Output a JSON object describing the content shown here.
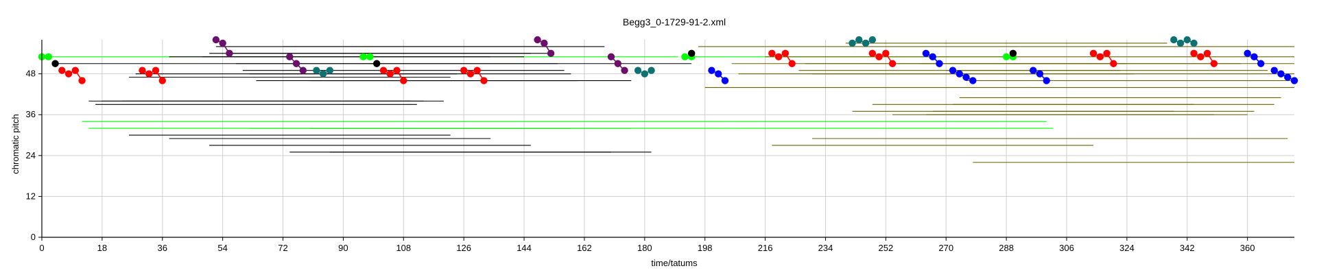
{
  "chart_data": {
    "type": "scatter",
    "title": "Begg3_0-1729-91-2.xml",
    "xlabel": "time/tatums",
    "ylabel": "chromatic pitch",
    "xlim": [
      0,
      374
    ],
    "ylim": [
      0,
      58
    ],
    "xticks": [
      0,
      18,
      36,
      54,
      72,
      90,
      108,
      126,
      144,
      162,
      180,
      198,
      216,
      234,
      252,
      270,
      288,
      306,
      324,
      342,
      360
    ],
    "yticks": [
      0,
      12,
      24,
      36,
      48
    ],
    "grid": true,
    "colors": {
      "black": "#000000",
      "green": "#00ff00",
      "olive": "#6b6100",
      "red": "#ff0000",
      "blue": "#0000ff",
      "purple": "#6a0f6a",
      "teal": "#0e7172"
    },
    "links": [
      {
        "color": "green",
        "x1": 0,
        "x2": 190,
        "y": 53
      },
      {
        "color": "green",
        "x1": 192,
        "x2": 288,
        "y": 53
      },
      {
        "color": "black",
        "x1": 4,
        "x2": 100,
        "y": 51
      },
      {
        "color": "black",
        "x1": 72,
        "x2": 168,
        "y": 56
      },
      {
        "color": "black",
        "x1": 38,
        "x2": 134,
        "y": 53
      },
      {
        "color": "black",
        "x1": 48,
        "x2": 144,
        "y": 53
      },
      {
        "color": "black",
        "x1": 50,
        "x2": 146,
        "y": 54
      },
      {
        "color": "black",
        "x1": 52,
        "x2": 148,
        "y": 56
      },
      {
        "color": "black",
        "x1": 56,
        "x2": 152,
        "y": 54
      },
      {
        "color": "black",
        "x1": 58,
        "x2": 154,
        "y": 51
      },
      {
        "color": "black",
        "x1": 60,
        "x2": 156,
        "y": 49
      },
      {
        "color": "black",
        "x1": 62,
        "x2": 158,
        "y": 48
      },
      {
        "color": "black",
        "x1": 64,
        "x2": 160,
        "y": 46
      },
      {
        "color": "black",
        "x1": 80,
        "x2": 176,
        "y": 46
      },
      {
        "color": "black",
        "x1": 26,
        "x2": 122,
        "y": 47
      },
      {
        "color": "black",
        "x1": 28,
        "x2": 124,
        "y": 48
      },
      {
        "color": "black",
        "x1": 14,
        "x2": 110,
        "y": 40
      },
      {
        "color": "black",
        "x1": 16,
        "x2": 112,
        "y": 39
      },
      {
        "color": "black",
        "x1": 18,
        "x2": 114,
        "y": 40
      },
      {
        "color": "black",
        "x1": 24,
        "x2": 120,
        "y": 40
      },
      {
        "color": "black",
        "x1": 26,
        "x2": 122,
        "y": 30
      },
      {
        "color": "black",
        "x1": 38,
        "x2": 134,
        "y": 29
      },
      {
        "color": "black",
        "x1": 62,
        "x2": 158,
        "y": 32
      },
      {
        "color": "black",
        "x1": 80,
        "x2": 176,
        "y": 32
      },
      {
        "color": "black",
        "x1": 50,
        "x2": 146,
        "y": 27
      },
      {
        "color": "black",
        "x1": 74,
        "x2": 170,
        "y": 25
      },
      {
        "color": "black",
        "x1": 86,
        "x2": 182,
        "y": 25
      },
      {
        "color": "black",
        "x1": 98,
        "x2": 194,
        "y": 51
      },
      {
        "color": "green",
        "x1": 12,
        "x2": 108,
        "y": 34
      },
      {
        "color": "green",
        "x1": 14,
        "x2": 110,
        "y": 32
      },
      {
        "color": "green",
        "x1": 108,
        "x2": 204,
        "y": 34
      },
      {
        "color": "green",
        "x1": 110,
        "x2": 206,
        "y": 32
      },
      {
        "color": "green",
        "x1": 204,
        "x2": 300,
        "y": 34
      },
      {
        "color": "green",
        "x1": 206,
        "x2": 302,
        "y": 32
      },
      {
        "color": "olive",
        "x1": 196,
        "x2": 292,
        "y": 56
      },
      {
        "color": "olive",
        "x1": 292,
        "x2": 374,
        "y": 56
      },
      {
        "color": "olive",
        "x1": 206,
        "x2": 302,
        "y": 51
      },
      {
        "color": "olive",
        "x1": 302,
        "x2": 374,
        "y": 51
      },
      {
        "color": "olive",
        "x1": 198,
        "x2": 294,
        "y": 44
      },
      {
        "color": "olive",
        "x1": 294,
        "x2": 374,
        "y": 44
      },
      {
        "color": "olive",
        "x1": 208,
        "x2": 304,
        "y": 48
      },
      {
        "color": "olive",
        "x1": 304,
        "x2": 374,
        "y": 48
      },
      {
        "color": "olive",
        "x1": 216,
        "x2": 312,
        "y": 53
      },
      {
        "color": "olive",
        "x1": 312,
        "x2": 374,
        "y": 53
      },
      {
        "color": "olive",
        "x1": 226,
        "x2": 322,
        "y": 49
      },
      {
        "color": "olive",
        "x1": 228,
        "x2": 324,
        "y": 51
      },
      {
        "color": "olive",
        "x1": 230,
        "x2": 326,
        "y": 48
      },
      {
        "color": "olive",
        "x1": 242,
        "x2": 338,
        "y": 37
      },
      {
        "color": "olive",
        "x1": 248,
        "x2": 344,
        "y": 39
      },
      {
        "color": "olive",
        "x1": 254,
        "x2": 350,
        "y": 36
      },
      {
        "color": "olive",
        "x1": 262,
        "x2": 358,
        "y": 51
      },
      {
        "color": "olive",
        "x1": 266,
        "x2": 362,
        "y": 37
      },
      {
        "color": "olive",
        "x1": 270,
        "x2": 366,
        "y": 49
      },
      {
        "color": "olive",
        "x1": 272,
        "x2": 368,
        "y": 39
      },
      {
        "color": "olive",
        "x1": 274,
        "x2": 370,
        "y": 41
      },
      {
        "color": "olive",
        "x1": 264,
        "x2": 360,
        "y": 36
      },
      {
        "color": "olive",
        "x1": 218,
        "x2": 314,
        "y": 27
      },
      {
        "color": "olive",
        "x1": 230,
        "x2": 326,
        "y": 29
      },
      {
        "color": "olive",
        "x1": 276,
        "x2": 372,
        "y": 29
      },
      {
        "color": "olive",
        "x1": 278,
        "x2": 374,
        "y": 22
      },
      {
        "color": "olive",
        "x1": 276,
        "x2": 374,
        "y": 46
      },
      {
        "color": "olive",
        "x1": 240,
        "x2": 336,
        "y": 57
      }
    ],
    "groups": [
      {
        "color": "green",
        "x": [
          0,
          2
        ],
        "y": [
          53,
          53
        ]
      },
      {
        "color": "green",
        "x": [
          96,
          98
        ],
        "y": [
          53,
          53
        ]
      },
      {
        "color": "green",
        "x": [
          192,
          194
        ],
        "y": [
          53,
          53
        ]
      },
      {
        "color": "green",
        "x": [
          288,
          290
        ],
        "y": [
          53,
          53
        ]
      },
      {
        "color": "black",
        "x": [
          4
        ],
        "y": [
          51
        ]
      },
      {
        "color": "black",
        "x": [
          100
        ],
        "y": [
          51
        ]
      },
      {
        "color": "black",
        "x": [
          194
        ],
        "y": [
          54
        ]
      },
      {
        "color": "black",
        "x": [
          290
        ],
        "y": [
          54
        ]
      },
      {
        "color": "red",
        "x": [
          6,
          8,
          10,
          12
        ],
        "y": [
          49,
          48,
          49,
          46
        ]
      },
      {
        "color": "red",
        "x": [
          30,
          32,
          34,
          36
        ],
        "y": [
          49,
          48,
          49,
          46
        ]
      },
      {
        "color": "red",
        "x": [
          102,
          104,
          106,
          108
        ],
        "y": [
          49,
          48,
          49,
          46
        ]
      },
      {
        "color": "red",
        "x": [
          126,
          128,
          130,
          132
        ],
        "y": [
          49,
          48,
          49,
          46
        ]
      },
      {
        "color": "red",
        "x": [
          218,
          220,
          222,
          224
        ],
        "y": [
          54,
          53,
          54,
          51
        ]
      },
      {
        "color": "red",
        "x": [
          248,
          250,
          252,
          254
        ],
        "y": [
          54,
          53,
          54,
          51
        ]
      },
      {
        "color": "red",
        "x": [
          314,
          316,
          318,
          320
        ],
        "y": [
          54,
          53,
          54,
          51
        ]
      },
      {
        "color": "red",
        "x": [
          344,
          346,
          348,
          350
        ],
        "y": [
          54,
          53,
          54,
          51
        ]
      },
      {
        "color": "purple",
        "x": [
          52,
          54,
          56
        ],
        "y": [
          58,
          57,
          54
        ]
      },
      {
        "color": "purple",
        "x": [
          74,
          76,
          78
        ],
        "y": [
          53,
          51,
          49
        ]
      },
      {
        "color": "purple",
        "x": [
          148,
          150,
          152
        ],
        "y": [
          58,
          57,
          54
        ]
      },
      {
        "color": "purple",
        "x": [
          170,
          172,
          174
        ],
        "y": [
          53,
          51,
          49
        ]
      },
      {
        "color": "teal",
        "x": [
          82,
          84,
          86
        ],
        "y": [
          49,
          48,
          49
        ]
      },
      {
        "color": "teal",
        "x": [
          178,
          180,
          182
        ],
        "y": [
          49,
          48,
          49
        ]
      },
      {
        "color": "teal",
        "x": [
          242,
          244,
          246,
          248
        ],
        "y": [
          57,
          58,
          57,
          58
        ]
      },
      {
        "color": "teal",
        "x": [
          338,
          340,
          342,
          344
        ],
        "y": [
          58,
          57,
          58,
          57
        ]
      },
      {
        "color": "blue",
        "x": [
          200,
          202,
          204
        ],
        "y": [
          49,
          48,
          46
        ]
      },
      {
        "color": "blue",
        "x": [
          264,
          266,
          268
        ],
        "y": [
          54,
          53,
          51
        ]
      },
      {
        "color": "blue",
        "x": [
          272,
          274,
          276,
          278
        ],
        "y": [
          49,
          48,
          47,
          46
        ]
      },
      {
        "color": "blue",
        "x": [
          296,
          298,
          300
        ],
        "y": [
          49,
          48,
          46
        ]
      },
      {
        "color": "blue",
        "x": [
          360,
          362,
          364
        ],
        "y": [
          54,
          53,
          51
        ]
      },
      {
        "color": "blue",
        "x": [
          368,
          370,
          372,
          374
        ],
        "y": [
          49,
          48,
          47,
          46
        ]
      }
    ]
  }
}
